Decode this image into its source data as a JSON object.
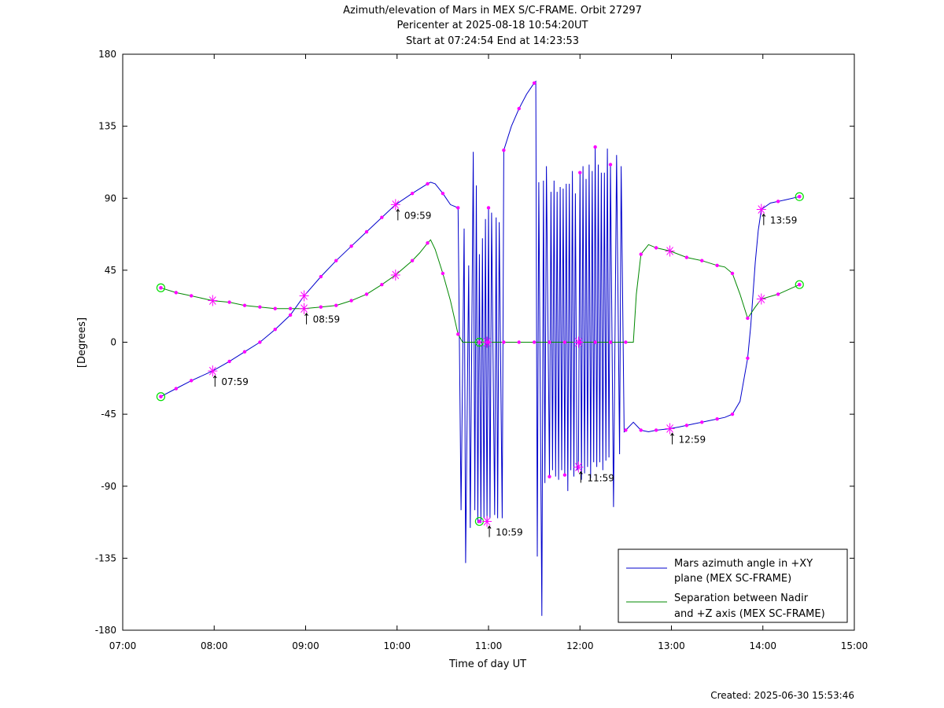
{
  "chart_data": {
    "type": "line",
    "title_lines": [
      "Azimuth/elevation of Mars in MEX S/C-FRAME.  Orbit 27297",
      "Pericenter at 2025-08-18 10:54:20UT",
      "Start at 07:24:54 End at 14:23:53"
    ],
    "xlabel": "Time of day UT",
    "ylabel": "[Degrees]",
    "xlim": [
      "07:00",
      "15:00"
    ],
    "ylim": [
      -180,
      180
    ],
    "x_ticks": [
      "07:00",
      "08:00",
      "09:00",
      "10:00",
      "11:00",
      "12:00",
      "13:00",
      "14:00",
      "15:00"
    ],
    "y_ticks": [
      "180",
      "135",
      "90",
      "45",
      "0",
      "-45",
      "-90",
      "-135",
      "-180"
    ],
    "created": "Created: 2025-06-30 15:53:46",
    "legend": {
      "position": "bottom-right",
      "entries": [
        {
          "line1": "Mars azimuth angle in +XY",
          "line2": "plane (MEX SC-FRAME)",
          "color": "#0000cc"
        },
        {
          "line1": "Separation between Nadir",
          "line2": "and +Z axis (MEX SC-FRAME)",
          "color": "#008800"
        }
      ]
    },
    "marker_colors": {
      "dot": "#ff00ff",
      "endpoint_circle": "#00dd00"
    },
    "annotations": [
      {
        "label": "07:59",
        "x": "07:59",
        "y": -18
      },
      {
        "label": "08:59",
        "x": "08:59",
        "y": 21
      },
      {
        "label": "09:59",
        "x": "09:59",
        "y": 86
      },
      {
        "label": "10:59",
        "x": "10:59",
        "y": -112
      },
      {
        "label": "11:59",
        "x": "11:59",
        "y": -78
      },
      {
        "label": "12:59",
        "x": "12:59",
        "y": -54
      },
      {
        "label": "13:59",
        "x": "13:59",
        "y": 83
      }
    ],
    "series": [
      {
        "name": "Mars azimuth angle in +XY plane (MEX SC-FRAME)",
        "color": "#0000cc",
        "points": [
          [
            "07:25",
            -34
          ],
          [
            "07:35",
            -29
          ],
          [
            "07:45",
            -24
          ],
          [
            "07:59",
            -18
          ],
          [
            "08:10",
            -12
          ],
          [
            "08:20",
            -6
          ],
          [
            "08:30",
            0
          ],
          [
            "08:40",
            8
          ],
          [
            "08:50",
            17
          ],
          [
            "08:59",
            29
          ],
          [
            "09:10",
            41
          ],
          [
            "09:20",
            51
          ],
          [
            "09:30",
            60
          ],
          [
            "09:40",
            69
          ],
          [
            "09:50",
            78
          ],
          [
            "09:59",
            86
          ],
          [
            "10:10",
            93
          ],
          [
            "10:20",
            99
          ],
          [
            "10:22",
            100
          ],
          [
            "10:25",
            99
          ],
          [
            "10:30",
            93
          ],
          [
            "10:35",
            86
          ],
          [
            "10:40",
            84
          ],
          [
            "10:42",
            -105
          ],
          [
            "10:44",
            71
          ],
          [
            "10:45",
            -138
          ],
          [
            "10:47",
            48
          ],
          [
            "10:48",
            -116
          ],
          [
            "10:50",
            119
          ],
          [
            "10:51",
            -105
          ],
          [
            "10:52",
            98
          ],
          [
            "10:53",
            -113
          ],
          [
            "10:54",
            55
          ],
          [
            "10:55",
            -113
          ],
          [
            "10:56",
            65
          ],
          [
            "10:57",
            -110
          ],
          [
            "10:58",
            77
          ],
          [
            "10:59",
            -112
          ],
          [
            "11:00",
            84
          ],
          [
            "11:01",
            -110
          ],
          [
            "11:02",
            81
          ],
          [
            "11:04",
            -108
          ],
          [
            "11:05",
            78
          ],
          [
            "11:06",
            -110
          ],
          [
            "11:07",
            75
          ],
          [
            "11:09",
            -110
          ],
          [
            "11:10",
            120
          ],
          [
            "11:15",
            135
          ],
          [
            "11:20",
            146
          ],
          [
            "11:25",
            155
          ],
          [
            "11:30",
            162
          ],
          [
            "11:31",
            163
          ],
          [
            "11:32",
            -134
          ],
          [
            "11:33",
            100
          ],
          [
            "11:35",
            -171
          ],
          [
            "11:36",
            101
          ],
          [
            "11:37",
            -88
          ],
          [
            "11:38",
            110
          ],
          [
            "11:40",
            -84
          ],
          [
            "11:41",
            94
          ],
          [
            "11:42",
            -80
          ],
          [
            "11:43",
            101
          ],
          [
            "11:44",
            -84
          ],
          [
            "11:45",
            94
          ],
          [
            "11:46",
            -86
          ],
          [
            "11:47",
            97
          ],
          [
            "11:48",
            -80
          ],
          [
            "11:49",
            96
          ],
          [
            "11:50",
            -83
          ],
          [
            "11:51",
            99
          ],
          [
            "11:52",
            -93
          ],
          [
            "11:53",
            99
          ],
          [
            "11:54",
            -80
          ],
          [
            "11:55",
            107
          ],
          [
            "11:56",
            -84
          ],
          [
            "11:57",
            93
          ],
          [
            "11:58",
            -80
          ],
          [
            "11:59",
            -78
          ],
          [
            "12:00",
            106
          ],
          [
            "12:01",
            -86
          ],
          [
            "12:02",
            110
          ],
          [
            "12:03",
            -82
          ],
          [
            "12:04",
            102
          ],
          [
            "12:05",
            -78
          ],
          [
            "12:06",
            111
          ],
          [
            "12:07",
            -85
          ],
          [
            "12:08",
            107
          ],
          [
            "12:09",
            -75
          ],
          [
            "12:10",
            122
          ],
          [
            "12:11",
            -78
          ],
          [
            "12:12",
            111
          ],
          [
            "12:13",
            -75
          ],
          [
            "12:14",
            106
          ],
          [
            "12:15",
            -80
          ],
          [
            "12:16",
            106
          ],
          [
            "12:17",
            -74
          ],
          [
            "12:18",
            121
          ],
          [
            "12:19",
            -72
          ],
          [
            "12:20",
            111
          ],
          [
            "12:22",
            -103
          ],
          [
            "12:24",
            117
          ],
          [
            "12:26",
            -70
          ],
          [
            "12:27",
            110
          ],
          [
            "12:29",
            -56
          ],
          [
            "12:35",
            -50
          ],
          [
            "12:40",
            -55
          ],
          [
            "12:45",
            -56
          ],
          [
            "12:50",
            -55
          ],
          [
            "12:59",
            -54
          ],
          [
            "13:05",
            -53
          ],
          [
            "13:15",
            -51
          ],
          [
            "13:25",
            -49
          ],
          [
            "13:35",
            -47
          ],
          [
            "13:40",
            -45
          ],
          [
            "13:45",
            -37
          ],
          [
            "13:50",
            -10
          ],
          [
            "13:52",
            10
          ],
          [
            "13:55",
            50
          ],
          [
            "13:57",
            70
          ],
          [
            "13:59",
            83
          ],
          [
            "14:05",
            87
          ],
          [
            "14:15",
            89
          ],
          [
            "14:24",
            91
          ]
        ]
      },
      {
        "name": "Separation between Nadir and +Z axis (MEX SC-FRAME)",
        "color": "#008800",
        "points": [
          [
            "07:25",
            34
          ],
          [
            "07:35",
            31
          ],
          [
            "07:45",
            29
          ],
          [
            "07:59",
            26
          ],
          [
            "08:10",
            25
          ],
          [
            "08:20",
            23
          ],
          [
            "08:30",
            22
          ],
          [
            "08:40",
            21
          ],
          [
            "08:50",
            21
          ],
          [
            "08:59",
            21
          ],
          [
            "09:10",
            22
          ],
          [
            "09:20",
            23
          ],
          [
            "09:30",
            26
          ],
          [
            "09:40",
            30
          ],
          [
            "09:50",
            36
          ],
          [
            "09:59",
            42
          ],
          [
            "10:10",
            51
          ],
          [
            "10:15",
            56
          ],
          [
            "10:20",
            62
          ],
          [
            "10:22",
            64
          ],
          [
            "10:25",
            58
          ],
          [
            "10:30",
            43
          ],
          [
            "10:35",
            26
          ],
          [
            "10:40",
            5
          ],
          [
            "10:43",
            0
          ],
          [
            "11:00",
            0
          ],
          [
            "11:30",
            0
          ],
          [
            "12:00",
            0
          ],
          [
            "12:30",
            0
          ],
          [
            "12:35",
            0
          ],
          [
            "12:37",
            30
          ],
          [
            "12:40",
            55
          ],
          [
            "12:45",
            61
          ],
          [
            "12:50",
            59
          ],
          [
            "12:59",
            57
          ],
          [
            "13:10",
            53
          ],
          [
            "13:20",
            51
          ],
          [
            "13:30",
            48
          ],
          [
            "13:35",
            47
          ],
          [
            "13:40",
            43
          ],
          [
            "13:45",
            30
          ],
          [
            "13:50",
            15
          ],
          [
            "13:55",
            22
          ],
          [
            "13:59",
            27
          ],
          [
            "14:10",
            30
          ],
          [
            "14:24",
            36
          ]
        ]
      }
    ],
    "markers": [
      {
        "series": 0,
        "x": [
          "07:25",
          "07:35",
          "07:45",
          "08:10",
          "08:20",
          "08:30",
          "08:40",
          "08:50",
          "09:10",
          "09:20",
          "09:30",
          "09:40",
          "09:50",
          "10:10",
          "10:20",
          "10:30",
          "10:40",
          "11:00",
          "11:10",
          "11:20",
          "11:30",
          "11:40",
          "11:50",
          "12:00",
          "12:10",
          "12:20",
          "12:30",
          "12:40",
          "12:50",
          "13:10",
          "13:20",
          "13:30",
          "13:40",
          "13:50",
          "14:10",
          "14:24"
        ]
      },
      {
        "series": 1,
        "x": [
          "07:25",
          "07:35",
          "07:45",
          "08:10",
          "08:20",
          "08:30",
          "08:40",
          "08:50",
          "09:10",
          "09:20",
          "09:30",
          "09:40",
          "09:50",
          "10:10",
          "10:20",
          "10:30",
          "10:40",
          "11:00",
          "11:10",
          "11:20",
          "11:30",
          "11:40",
          "11:50",
          "12:00",
          "12:10",
          "12:20",
          "12:30",
          "12:40",
          "12:50",
          "13:10",
          "13:20",
          "13:30",
          "13:40",
          "13:50",
          "14:10",
          "14:24"
        ]
      }
    ],
    "endpoint_circles": [
      {
        "x": "07:25",
        "y": -34
      },
      {
        "x": "07:25",
        "y": 34
      },
      {
        "x": "14:24",
        "y": 91
      },
      {
        "x": "14:24",
        "y": 36
      },
      {
        "x": "10:54",
        "y": 0
      },
      {
        "x": "10:54",
        "y": -112
      }
    ]
  }
}
